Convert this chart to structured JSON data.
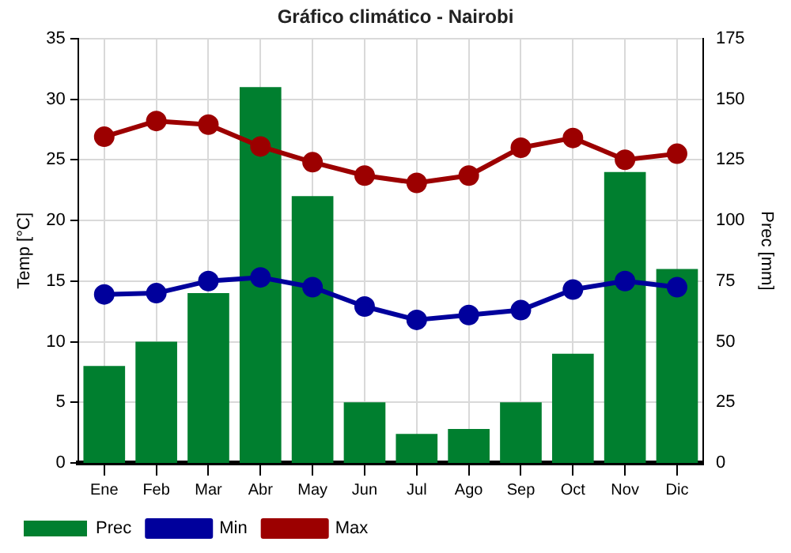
{
  "chart_data": {
    "type": "bar",
    "title": "Gráfico climático - Nairobi",
    "ylabel": "Temp [°C]",
    "y2label": "Prec [mm]",
    "categories": [
      "Ene",
      "Feb",
      "Mar",
      "Abr",
      "May",
      "Jun",
      "Jul",
      "Ago",
      "Sep",
      "Oct",
      "Nov",
      "Dic"
    ],
    "series": [
      {
        "name": "Prec",
        "axis": "y2",
        "color": "#007f2f",
        "values": [
          40,
          50,
          70,
          155,
          110,
          25,
          12,
          14,
          25,
          45,
          120,
          80
        ]
      },
      {
        "name": "Min",
        "type": "line",
        "color": "#00009c",
        "values": [
          13.9,
          14.0,
          15.0,
          15.3,
          14.5,
          12.9,
          11.8,
          12.2,
          12.6,
          14.3,
          15.0,
          14.5
        ]
      },
      {
        "name": "Max",
        "type": "line",
        "color": "#9c0000",
        "values": [
          26.9,
          28.2,
          27.9,
          26.1,
          24.8,
          23.7,
          23.1,
          23.7,
          26.0,
          26.8,
          25.0,
          25.5
        ]
      }
    ],
    "ylim": [
      0,
      35
    ],
    "yticks": [
      0,
      5,
      10,
      15,
      20,
      25,
      30,
      35
    ],
    "y2lim": [
      0,
      175
    ],
    "y2ticks": [
      0,
      25,
      50,
      75,
      100,
      125,
      150,
      175
    ],
    "grid": true,
    "legend": "bottom left",
    "marker": "circle",
    "line_style": "solid"
  }
}
